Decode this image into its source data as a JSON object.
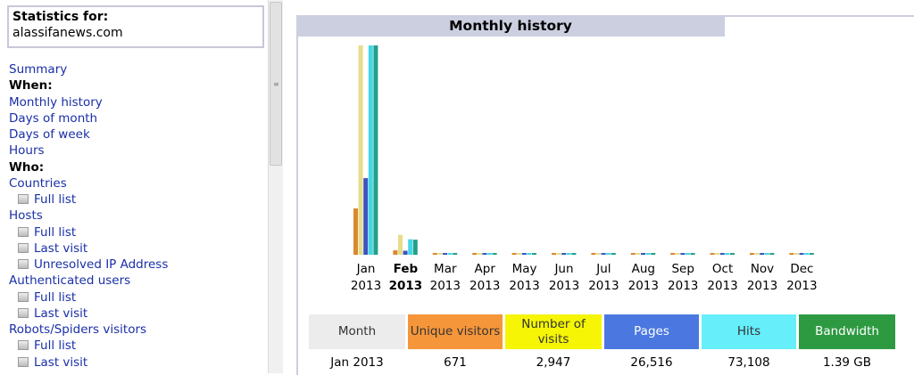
{
  "sidebar": {
    "stats_label": "Statistics for:",
    "site": "alassifanews.com",
    "menu": [
      {
        "type": "link",
        "label": "Summary"
      },
      {
        "type": "head",
        "label": "When:"
      },
      {
        "type": "link",
        "label": "Monthly history"
      },
      {
        "type": "link",
        "label": "Days of month"
      },
      {
        "type": "link",
        "label": "Days of week"
      },
      {
        "type": "link",
        "label": "Hours"
      },
      {
        "type": "head",
        "label": "Who:"
      },
      {
        "type": "link",
        "label": "Countries"
      },
      {
        "type": "sub",
        "label": "Full list"
      },
      {
        "type": "link",
        "label": "Hosts"
      },
      {
        "type": "sub",
        "label": "Full list"
      },
      {
        "type": "sub",
        "label": "Last visit"
      },
      {
        "type": "sub",
        "label": "Unresolved IP Address"
      },
      {
        "type": "link",
        "label": "Authenticated users"
      },
      {
        "type": "sub",
        "label": "Full list"
      },
      {
        "type": "sub",
        "label": "Last visit"
      },
      {
        "type": "link",
        "label": "Robots/Spiders visitors"
      },
      {
        "type": "sub",
        "label": "Full list"
      },
      {
        "type": "sub",
        "label": "Last visit"
      }
    ]
  },
  "main": {
    "tab_title": "Monthly history"
  },
  "chart_data": {
    "type": "bar",
    "categories": [
      [
        "Jan",
        "2013"
      ],
      [
        "Feb",
        "2013"
      ],
      [
        "Mar",
        "2013"
      ],
      [
        "Apr",
        "2013"
      ],
      [
        "May",
        "2013"
      ],
      [
        "Jun",
        "2013"
      ],
      [
        "Jul",
        "2013"
      ],
      [
        "Aug",
        "2013"
      ],
      [
        "Sep",
        "2013"
      ],
      [
        "Oct",
        "2013"
      ],
      [
        "Nov",
        "2013"
      ],
      [
        "Dec",
        "2013"
      ]
    ],
    "current_index": 1,
    "series": [
      {
        "key": "unique",
        "color": "#d9892e",
        "values": [
          671,
          65,
          0,
          0,
          0,
          0,
          0,
          0,
          0,
          0,
          0,
          0
        ]
      },
      {
        "key": "visits",
        "color": "#e7dc8a",
        "values": [
          2947,
          280,
          0,
          0,
          0,
          0,
          0,
          0,
          0,
          0,
          0,
          0
        ]
      },
      {
        "key": "pages",
        "color": "#3a55c0",
        "values": [
          26516,
          1400,
          0,
          0,
          0,
          0,
          0,
          0,
          0,
          0,
          0,
          0
        ]
      },
      {
        "key": "hits",
        "color": "#45d6e6",
        "values": [
          73108,
          5400,
          0,
          0,
          0,
          0,
          0,
          0,
          0,
          0,
          0,
          0
        ]
      },
      {
        "key": "bandwidth",
        "color": "#22a08a",
        "values": [
          1.39,
          0.1,
          0,
          0,
          0,
          0,
          0,
          0,
          0,
          0,
          0,
          0
        ]
      }
    ]
  },
  "table": {
    "headers": [
      {
        "label": "Month",
        "bg": "#ececec",
        "fg": "#333333"
      },
      {
        "label": "Unique visitors",
        "bg": "#f5963a",
        "fg": "#333333"
      },
      {
        "label": "Number of visits",
        "bg": "#f5f505",
        "fg": "#333333"
      },
      {
        "label": "Pages",
        "bg": "#4a78e0",
        "fg": "#ffffff"
      },
      {
        "label": "Hits",
        "bg": "#66eefa",
        "fg": "#333333"
      },
      {
        "label": "Bandwidth",
        "bg": "#2d9a42",
        "fg": "#ffffff"
      }
    ],
    "rows": [
      [
        "Jan 2013",
        "671",
        "2,947",
        "26,516",
        "73,108",
        "1.39 GB"
      ]
    ]
  }
}
